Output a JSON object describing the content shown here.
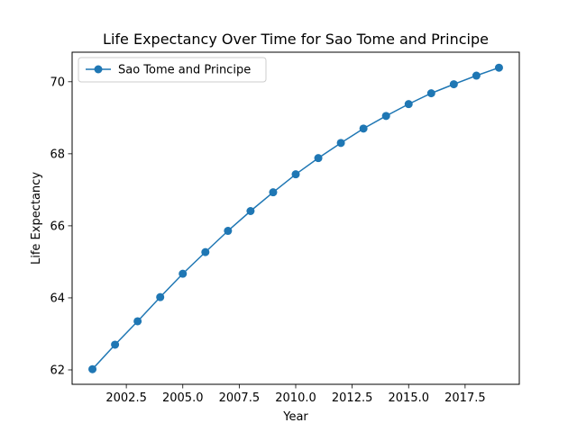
{
  "chart_data": {
    "type": "line",
    "title": "Life Expectancy Over Time for Sao Tome and Principe",
    "xlabel": "Year",
    "ylabel": "Life Expectancy",
    "xlim": [
      2000.1,
      2019.9
    ],
    "ylim": [
      61.6,
      70.82
    ],
    "xticks": [
      2002.5,
      2005.0,
      2007.5,
      2010.0,
      2012.5,
      2015.0,
      2017.5
    ],
    "xtick_labels": [
      "2002.5",
      "2005.0",
      "2007.5",
      "2010.0",
      "2012.5",
      "2015.0",
      "2017.5"
    ],
    "yticks": [
      62,
      64,
      66,
      68,
      70
    ],
    "ytick_labels": [
      "62",
      "64",
      "66",
      "68",
      "70"
    ],
    "grid": false,
    "legend_position": "top-left",
    "series": [
      {
        "name": "Sao Tome and Principe",
        "color": "#1f77b4",
        "marker": "circle",
        "x": [
          2001,
          2002,
          2003,
          2004,
          2005,
          2006,
          2007,
          2008,
          2009,
          2010,
          2011,
          2012,
          2013,
          2014,
          2015,
          2016,
          2017,
          2018,
          2019
        ],
        "values": [
          62.02,
          62.7,
          63.35,
          64.02,
          64.67,
          65.27,
          65.86,
          66.41,
          66.93,
          67.43,
          67.88,
          68.3,
          68.7,
          69.05,
          69.38,
          69.68,
          69.93,
          70.17,
          70.39
        ]
      }
    ]
  }
}
